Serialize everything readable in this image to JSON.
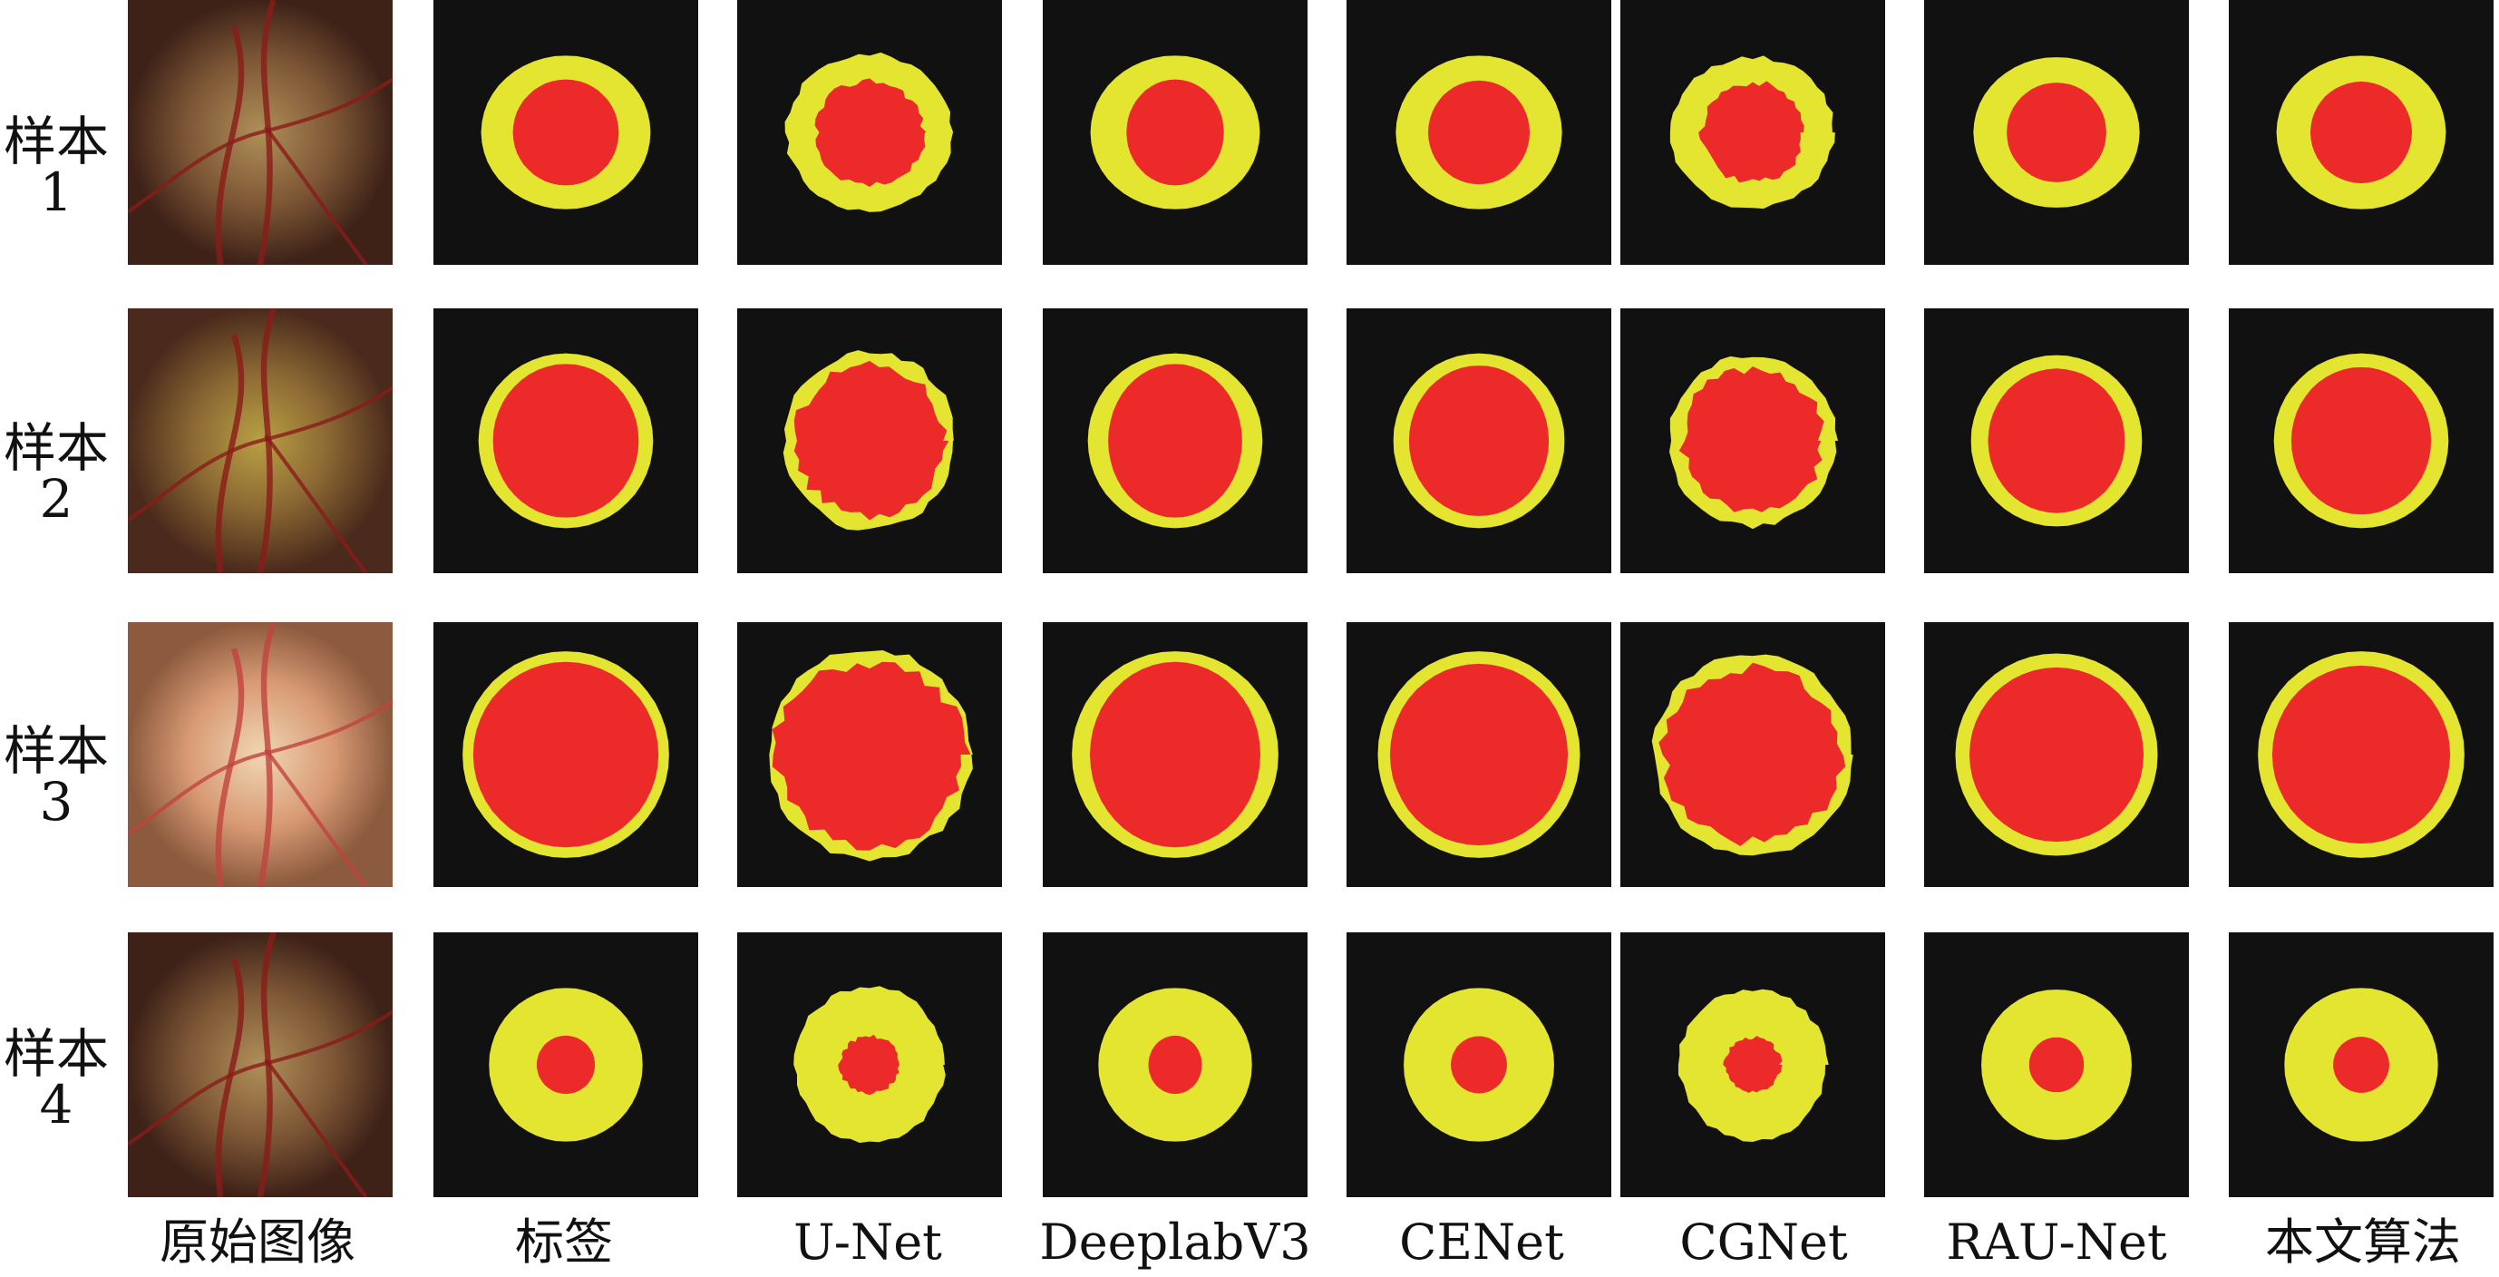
{
  "rows": [
    {
      "label_line1": "样本",
      "label_line2": "1"
    },
    {
      "label_line1": "样本",
      "label_line2": "2"
    },
    {
      "label_line1": "样本",
      "label_line2": "3"
    },
    {
      "label_line1": "样本",
      "label_line2": "4"
    }
  ],
  "columns": [
    {
      "label": "原始图像"
    },
    {
      "label": "标签"
    },
    {
      "label": "U-Net"
    },
    {
      "label": "DeeplabV3"
    },
    {
      "label": "CENet"
    },
    {
      "label": "CGNet"
    },
    {
      "label": "RAU-Net"
    },
    {
      "label": "本文算法"
    }
  ],
  "colors": {
    "background": "#111111",
    "optic_disc": "#e3e531",
    "optic_cup": "#ec2a2a",
    "fundus_base": "#6b3a26"
  }
}
